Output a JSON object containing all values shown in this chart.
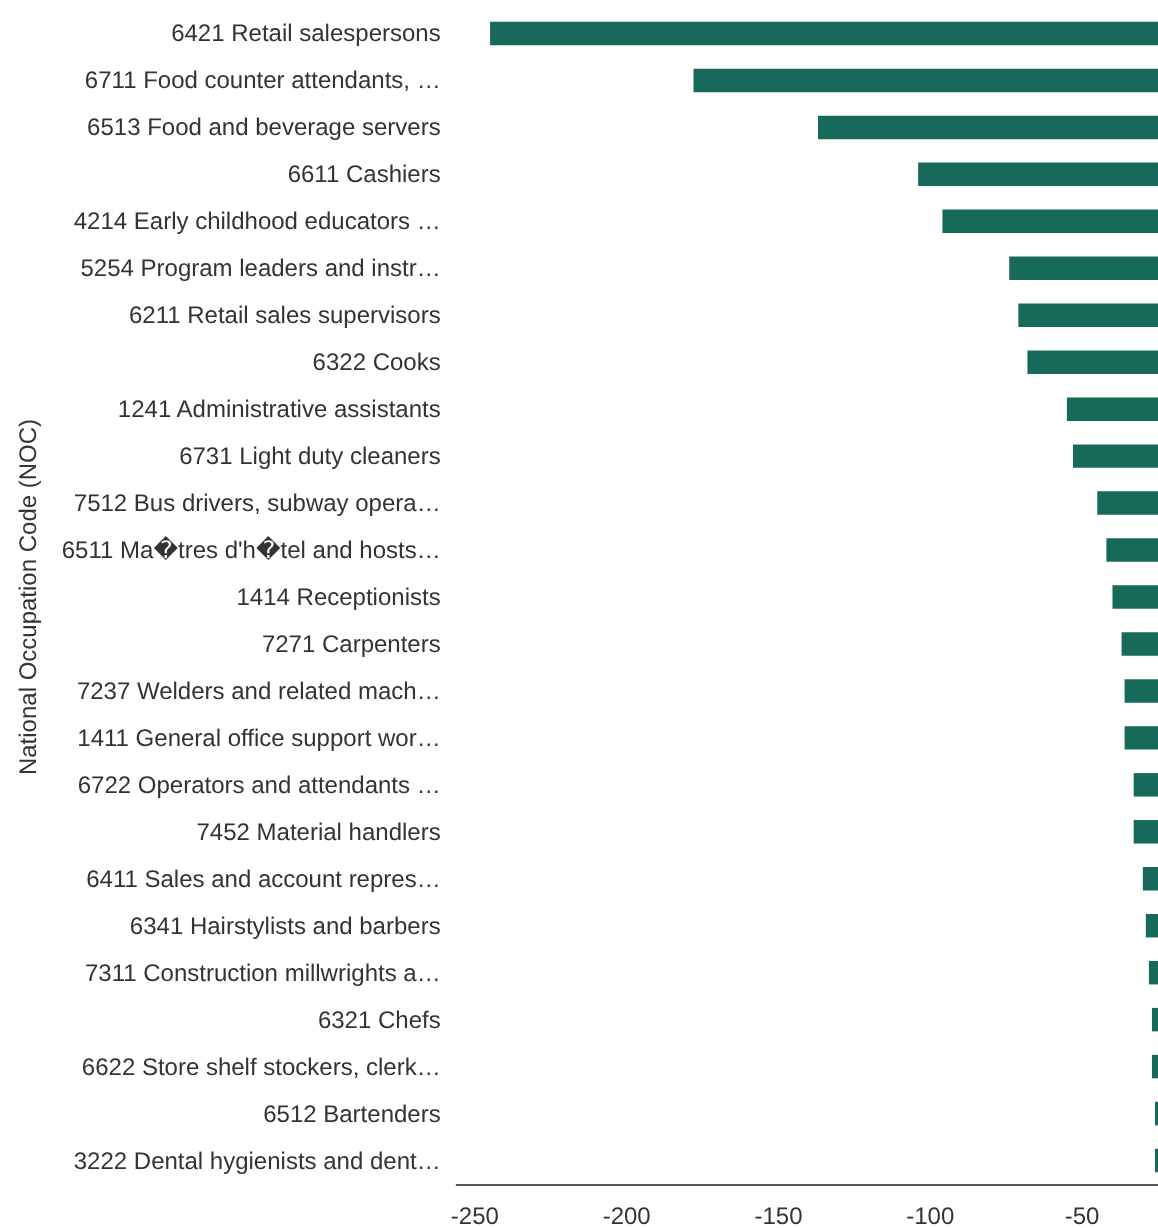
{
  "chart_data": {
    "type": "bar",
    "orientation": "horizontal",
    "ylabel": "National Occupation Code (NOC)",
    "categories": [
      "6421 Retail salespersons",
      "6711 Food counter attendants, …",
      "6513 Food and beverage servers",
      "6611 Cashiers",
      "4214 Early childhood educators …",
      "5254 Program leaders and instr…",
      "6211 Retail sales supervisors",
      "6322 Cooks",
      "1241 Administrative assistants",
      "6731 Light duty cleaners",
      "7512 Bus drivers, subway opera…",
      "6511 Ma�tres d'h�tel and hosts…",
      "1414 Receptionists",
      "7271 Carpenters",
      "7237 Welders and related mach…",
      "1411 General office support wor…",
      "6722 Operators and attendants …",
      "7452 Material handlers",
      "6411 Sales and account repres…",
      "6341 Hairstylists and barbers",
      "7311 Construction millwrights a…",
      "6321 Chefs",
      "6622 Store shelf stockers, clerk…",
      "6512 Bartenders",
      "3222 Dental hygienists and dent…"
    ],
    "values": [
      -245,
      -178,
      -137,
      -104,
      -96,
      -74,
      -71,
      -68,
      -55,
      -53,
      -45,
      -42,
      -40,
      -37,
      -36,
      -36,
      -33,
      -33,
      -30,
      -29,
      -28,
      -27,
      -27,
      -26,
      -26
    ],
    "color": "#17695a",
    "xlim": [
      -256,
      -25
    ],
    "xticks": [
      -250,
      -200,
      -150,
      -100,
      -50
    ]
  }
}
